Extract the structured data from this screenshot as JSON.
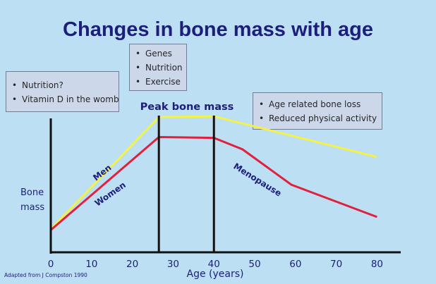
{
  "slide": {
    "title": "Changes in bone mass with age",
    "boxes": {
      "left": [
        "Nutrition?",
        "Vitamin D in the womb"
      ],
      "middle": [
        "Genes",
        "Nutrition",
        "Exercise"
      ],
      "right": [
        "Age related bone loss",
        "Reduced physical activity"
      ]
    },
    "credit": "Adapted from J Compston 1990"
  },
  "colors": {
    "background": "#bcdff3",
    "title": "#1c1f7a",
    "men_line": "#f2f24a",
    "women_line": "#e0203c",
    "axis": "#111111",
    "annotation": "#1c1f7a"
  },
  "chart_data": {
    "type": "line",
    "title": "Changes in bone mass with age",
    "xlabel": "Age (years)",
    "ylabel": "Bone\nmass",
    "xlim": [
      0,
      82
    ],
    "ylim": [
      0,
      100
    ],
    "xticks": [
      0,
      10,
      20,
      30,
      40,
      50,
      60,
      70,
      80
    ],
    "series": [
      {
        "name": "Men",
        "x": [
          0,
          26.5,
          40,
          80
        ],
        "values": [
          15,
          88,
          88.5,
          62
        ]
      },
      {
        "name": "Women",
        "x": [
          0,
          26.5,
          40,
          47,
          59,
          80
        ],
        "values": [
          14.5,
          75,
          74.5,
          67,
          44,
          23
        ]
      }
    ],
    "vlines": [
      26.5,
      40
    ],
    "annotations": {
      "peak": "Peak bone mass",
      "menopause": "Menopause"
    }
  }
}
